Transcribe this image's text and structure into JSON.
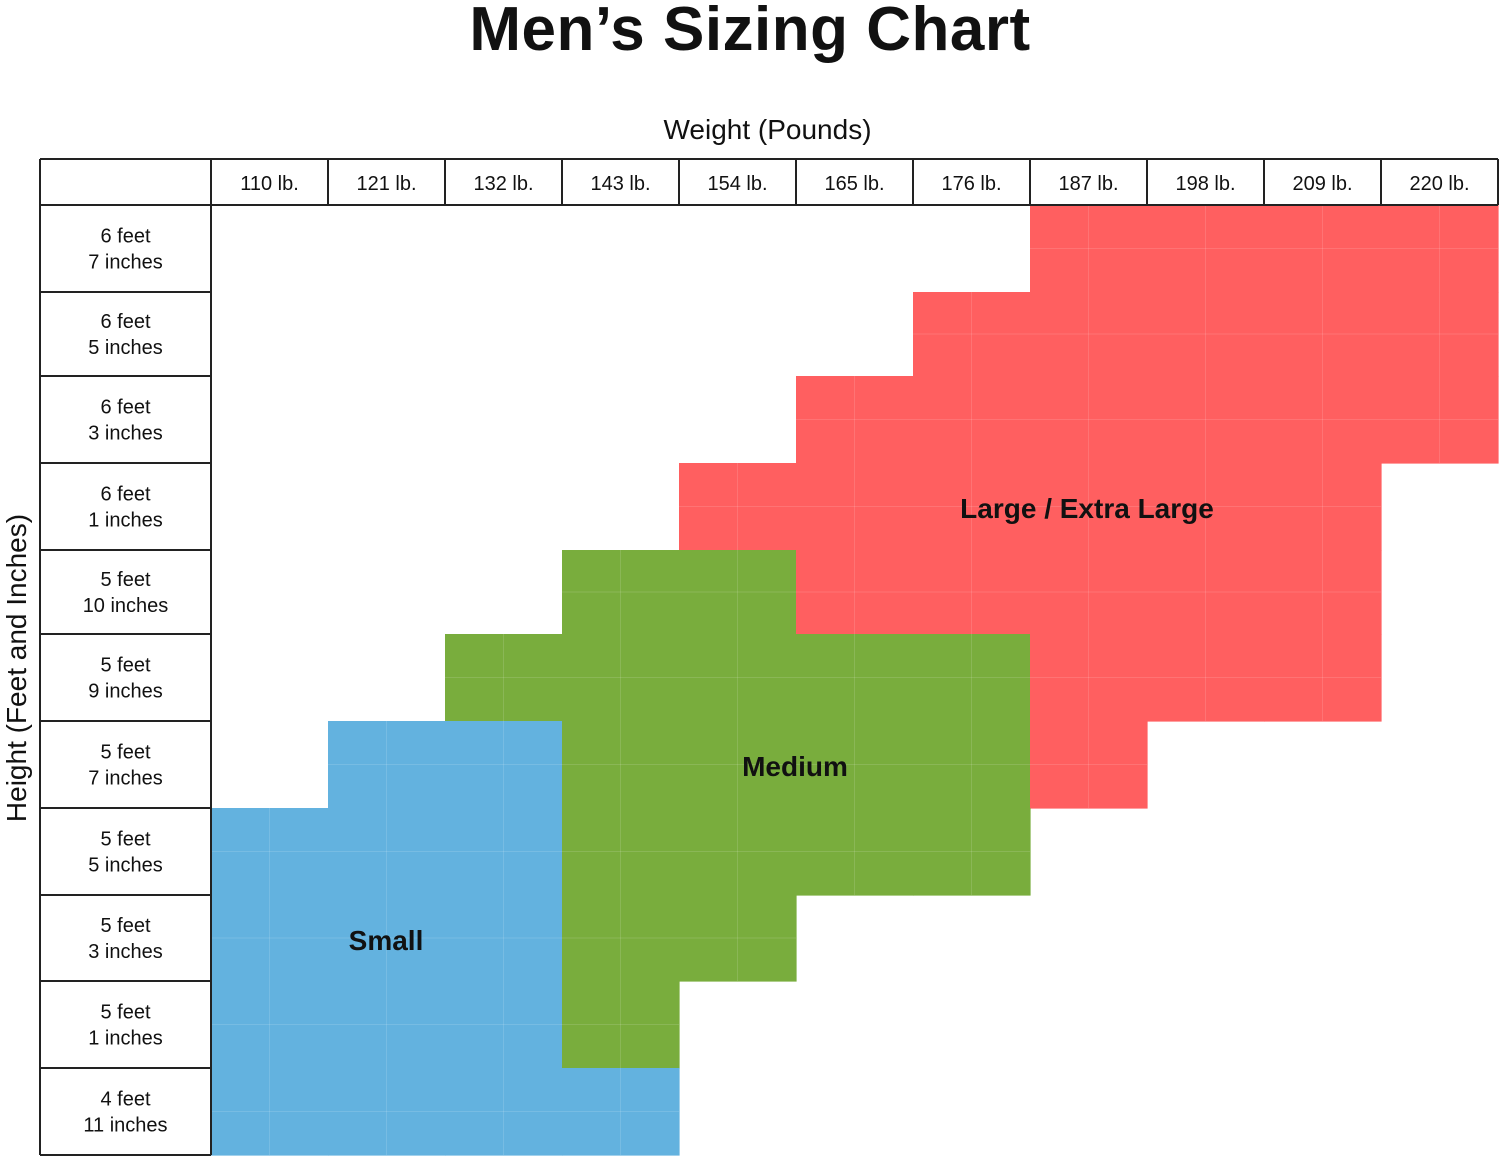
{
  "title": "Men’s Sizing Chart",
  "chart_data": {
    "type": "heatmap",
    "title": "Men’s Sizing Chart",
    "xlabel": "Weight (Pounds)",
    "ylabel": "Height (Feet and Inches)",
    "columns": [
      "110 lb.",
      "121 lb.",
      "132 lb.",
      "143 lb.",
      "154 lb.",
      "165 lb.",
      "176 lb.",
      "187 lb.",
      "198 lb.",
      "209 lb.",
      "220 lb."
    ],
    "rows": [
      [
        "6 feet",
        "7 inches"
      ],
      [
        "6 feet",
        "5 inches"
      ],
      [
        "6 feet",
        "3 inches"
      ],
      [
        "6 feet",
        "1 inches"
      ],
      [
        "5 feet",
        "10 inches"
      ],
      [
        "5 feet",
        "9 inches"
      ],
      [
        "5 feet",
        "7 inches"
      ],
      [
        "5 feet",
        "5 inches"
      ],
      [
        "5 feet",
        "3 inches"
      ],
      [
        "5 feet",
        "1 inches"
      ],
      [
        "4 feet",
        "11 inches"
      ]
    ],
    "grid": [
      "0000000LLLL",
      "000000LLLLL",
      "00000LLLLLL",
      "0000LLLLLL0",
      "000MMLLLLL0",
      "00MMMMMLLL0",
      "0SSMMMML000",
      "SSSMMMM0000",
      "SSSMM000000",
      "SSSM0000000",
      "SSSS0000000"
    ],
    "sizes": [
      {
        "code": "S",
        "name": "Small",
        "color": "#63b2df"
      },
      {
        "code": "M",
        "name": "Medium",
        "color": "#79ad3d"
      },
      {
        "code": "L",
        "name": "Large / Extra Large",
        "color": "#ff5f60"
      }
    ]
  }
}
